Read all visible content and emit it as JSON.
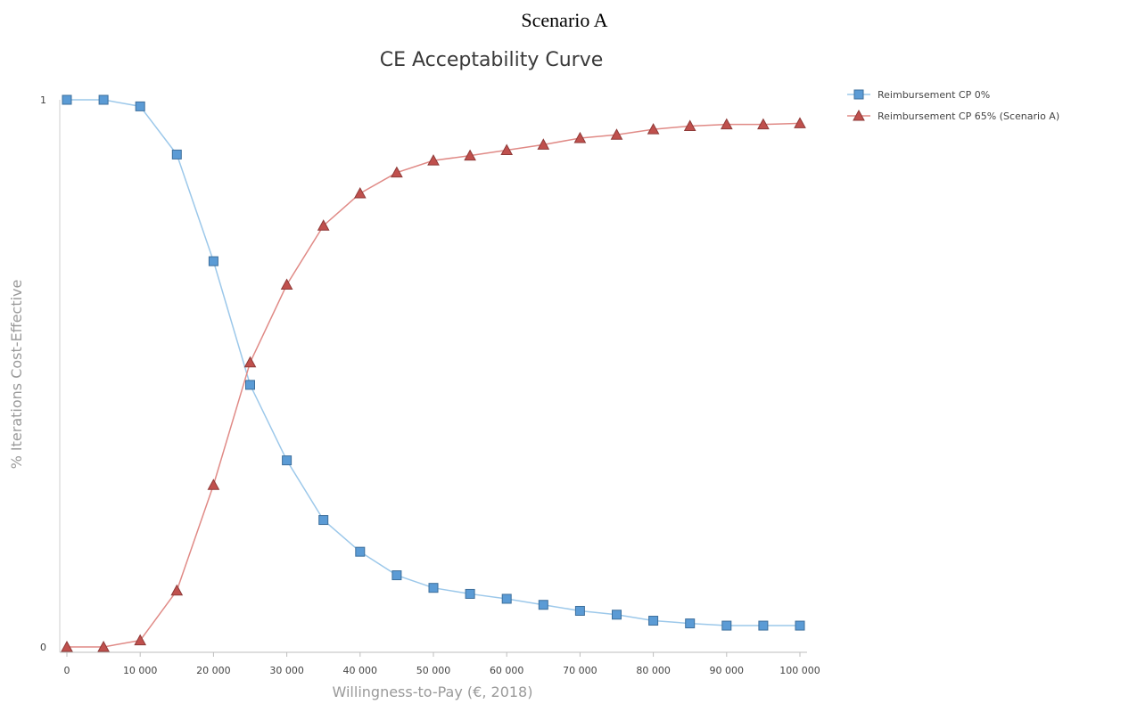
{
  "heading": "Scenario A",
  "chart_data": {
    "type": "line",
    "title": "CE Acceptability Curve",
    "xlabel": "Willingness-to-Pay (€, 2018)",
    "ylabel": "% Iterations Cost-Effective",
    "xlim": [
      0,
      100000
    ],
    "ylim": [
      0,
      1
    ],
    "x": [
      0,
      5000,
      10000,
      15000,
      20000,
      25000,
      30000,
      35000,
      40000,
      45000,
      50000,
      55000,
      60000,
      65000,
      70000,
      75000,
      80000,
      85000,
      90000,
      95000,
      100000
    ],
    "x_tick_labels": [
      "0",
      "10 000",
      "20 000",
      "30 000",
      "40 000",
      "50 000",
      "60 000",
      "70 000",
      "80 000",
      "90 000",
      "100 000"
    ],
    "x_ticks": [
      0,
      10000,
      20000,
      30000,
      40000,
      50000,
      60000,
      70000,
      80000,
      90000,
      100000
    ],
    "y_tick_labels": [
      "0",
      "1"
    ],
    "y_ticks": [
      0,
      1
    ],
    "grid": false,
    "legend_position": "top-right",
    "series": [
      {
        "name": "Reimbursement CP 0%",
        "color": "#5b9bd5",
        "line_color": "#9cc8ea",
        "marker": "square",
        "values": [
          1.0,
          1.0,
          0.988,
          0.9,
          0.705,
          0.479,
          0.341,
          0.232,
          0.174,
          0.131,
          0.108,
          0.097,
          0.088,
          0.077,
          0.066,
          0.059,
          0.048,
          0.043,
          0.039,
          0.039,
          0.039
        ]
      },
      {
        "name": "Reimbursement CP 65% (Scenario A)",
        "color": "#c0504d",
        "line_color": "#e08a86",
        "marker": "triangle",
        "values": [
          0.0,
          0.0,
          0.012,
          0.103,
          0.296,
          0.52,
          0.662,
          0.77,
          0.829,
          0.867,
          0.889,
          0.898,
          0.908,
          0.918,
          0.93,
          0.936,
          0.946,
          0.952,
          0.955,
          0.955,
          0.957
        ]
      }
    ]
  }
}
